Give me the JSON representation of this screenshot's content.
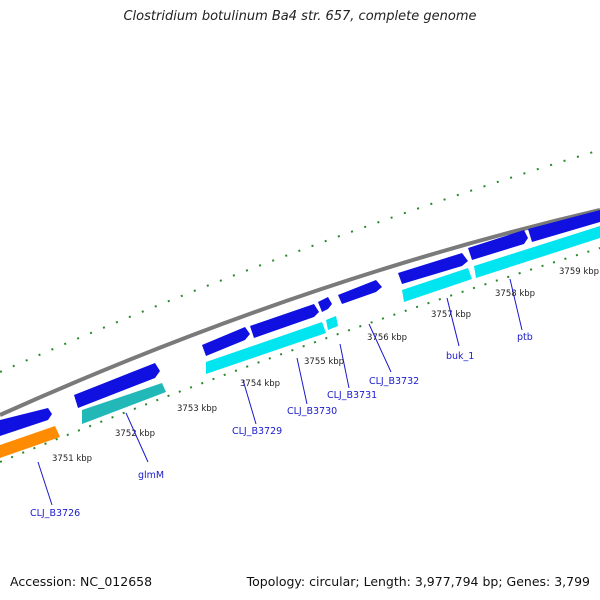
{
  "title": "Clostridium botulinum Ba4 str. 657, complete genome",
  "accession_label": "Accession: NC_012658",
  "summary_label": "Topology: circular; Length: 3,977,794 bp; Genes: 3,799",
  "colors": {
    "backbone": "#7a7a7a",
    "forward_cds": "#1010e0",
    "reverse_cds": "#00e5f0",
    "reverse_cds_dark": "#22b8b8",
    "rna": "#ff8c00",
    "ticks": "#2a8a2a",
    "label": "#1a1acc"
  },
  "ticks": [
    {
      "label": "3751 kbp",
      "kbp": 3751
    },
    {
      "label": "3752 kbp",
      "kbp": 3752
    },
    {
      "label": "3753 kbp",
      "kbp": 3753
    },
    {
      "label": "3754 kbp",
      "kbp": 3754
    },
    {
      "label": "3755 kbp",
      "kbp": 3755
    },
    {
      "label": "3756 kbp",
      "kbp": 3756
    },
    {
      "label": "3757 kbp",
      "kbp": 3757
    },
    {
      "label": "3758 kbp",
      "kbp": 3758
    },
    {
      "label": "3759 kbp",
      "kbp": 3759
    }
  ],
  "gene_labels": [
    "CLJ_B3726",
    "glmM",
    "CLJ_B3729",
    "CLJ_B3730",
    "CLJ_B3731",
    "CLJ_B3732",
    "buk_1",
    "ptb"
  ]
}
